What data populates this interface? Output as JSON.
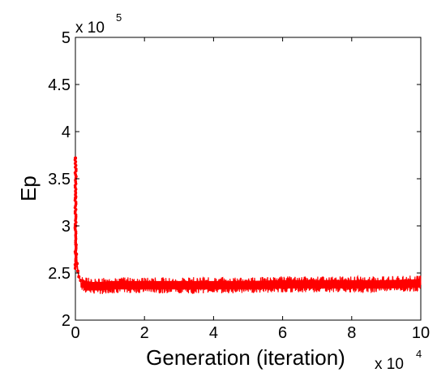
{
  "chart_data": {
    "type": "line",
    "title": "",
    "xlabel": "Generation (iteration)",
    "ylabel": "Ep",
    "xlim": [
      0,
      10
    ],
    "ylim": [
      2,
      5
    ],
    "x_multiplier": "x 10",
    "x_multiplier_exp": "4",
    "y_multiplier": "x 10",
    "y_multiplier_exp": "5",
    "x_ticks": [
      0,
      2,
      4,
      6,
      8,
      10
    ],
    "x_tick_labels": [
      "0",
      "2",
      "4",
      "6",
      "8",
      "10"
    ],
    "y_ticks": [
      2,
      2.5,
      3,
      3.5,
      4,
      4.5,
      5
    ],
    "y_tick_labels": [
      "2",
      "2.5",
      "3",
      "3.5",
      "4",
      "4.5",
      "5"
    ],
    "grid": false,
    "series": [
      {
        "color": "#ff0000",
        "marker": "dot",
        "x": [
          0,
          0.005,
          0.01,
          0.02,
          0.03,
          0.05,
          0.07,
          0.1,
          0.15,
          0.2,
          0.3,
          0.5,
          0.75,
          1,
          2,
          3,
          4,
          5,
          6,
          7,
          8,
          9,
          10
        ],
        "values": [
          3.72,
          3.3,
          3.0,
          2.8,
          2.7,
          2.6,
          2.52,
          2.46,
          2.42,
          2.39,
          2.37,
          2.36,
          2.36,
          2.37,
          2.37,
          2.37,
          2.37,
          2.37,
          2.38,
          2.38,
          2.38,
          2.38,
          2.39
        ],
        "noise_band": [
          2.28,
          2.46
        ]
      }
    ]
  }
}
